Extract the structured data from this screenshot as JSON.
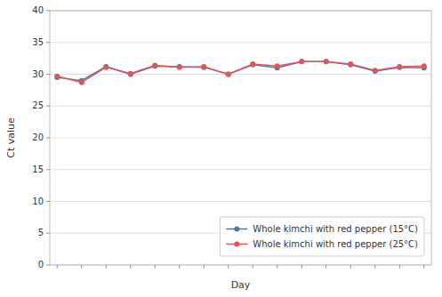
{
  "chart_data": {
    "type": "line",
    "xlabel": "Day",
    "ylabel": "Ct value",
    "x": [
      0,
      1,
      2,
      3,
      4,
      5,
      6,
      7,
      8,
      9,
      10,
      11,
      12,
      13,
      14,
      15
    ],
    "series": [
      {
        "name": "Whole kimchi with red pepper (15°C)",
        "marker": "circle",
        "line_style": "solid",
        "values": [
          29.5,
          29.0,
          31.2,
          30.0,
          31.3,
          31.2,
          31.1,
          30.0,
          31.5,
          31.0,
          32.0,
          32.0,
          31.5,
          30.5,
          31.1,
          31.0
        ]
      },
      {
        "name": "Whole kimchi with red pepper (25°C)",
        "marker": "circle",
        "line_style": "solid",
        "values": [
          29.7,
          28.7,
          31.1,
          30.1,
          31.4,
          31.1,
          31.2,
          30.0,
          31.6,
          31.3,
          32.0,
          32.0,
          31.6,
          30.6,
          31.2,
          31.3
        ]
      }
    ],
    "xlim": [
      -0.3,
      15.3
    ],
    "xticks": [
      0,
      1,
      2,
      3,
      4,
      5,
      6,
      7,
      8,
      9,
      10,
      11,
      12,
      13,
      14,
      15
    ],
    "ylim": [
      0,
      40
    ],
    "yticks": [
      0,
      5,
      10,
      15,
      20,
      25,
      30,
      35,
      40
    ],
    "grid": "y",
    "legend": "lower right",
    "tick_labels": "y"
  }
}
